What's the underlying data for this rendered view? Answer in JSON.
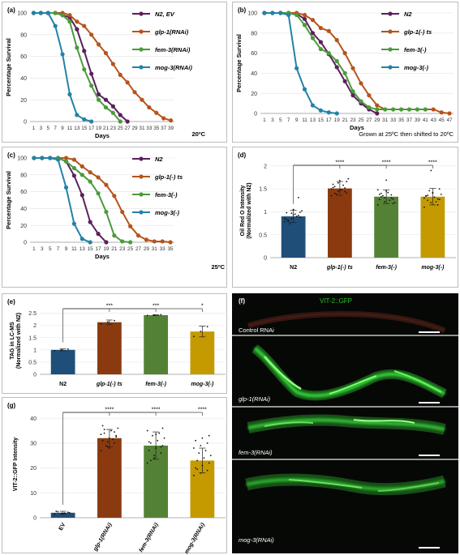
{
  "colors": {
    "N2": "#5c1f5c",
    "glp1": "#b5541c",
    "fem3": "#4c9a3c",
    "mog3": "#2382a7",
    "bar_N2": "#1f4e79",
    "bar_glp1": "#8b3a10",
    "bar_fem3": "#548235",
    "bar_mog3": "#c49a00"
  },
  "icons": [
    "legend-line-marker",
    "scale-bar"
  ],
  "chart_data": [
    {
      "id": "a",
      "type": "line",
      "panel_label": "(a)",
      "xlabel": "Days",
      "ylabel": "Percentage Survival",
      "note": "20ºC",
      "x_ticks": [
        1,
        3,
        5,
        7,
        9,
        11,
        13,
        15,
        17,
        19,
        21,
        23,
        25,
        27,
        29,
        31,
        33,
        35,
        37,
        39
      ],
      "y_ticks": [
        0,
        20,
        40,
        60,
        80,
        100
      ],
      "xlim": [
        0,
        40
      ],
      "ylim": [
        0,
        100
      ],
      "series": [
        {
          "name": "N2, EV",
          "key": "N2",
          "x": [
            1,
            3,
            5,
            7,
            9,
            11,
            13,
            15,
            17,
            19,
            21,
            23,
            25,
            27
          ],
          "y": [
            100,
            100,
            100,
            100,
            98,
            96,
            85,
            65,
            44,
            25,
            20,
            14,
            6,
            0
          ]
        },
        {
          "name": "glp-1(RNAi)",
          "key": "glp1",
          "x": [
            1,
            3,
            5,
            7,
            9,
            11,
            13,
            15,
            17,
            19,
            21,
            23,
            25,
            27,
            29,
            31,
            33,
            35,
            37,
            39
          ],
          "y": [
            100,
            100,
            100,
            100,
            100,
            98,
            92,
            88,
            80,
            71,
            63,
            53,
            43,
            36,
            27,
            20,
            13,
            8,
            3,
            1
          ]
        },
        {
          "name": "fem-3(RNAi)",
          "key": "fem3",
          "x": [
            1,
            3,
            5,
            7,
            9,
            11,
            13,
            15,
            17,
            19,
            21,
            23,
            25
          ],
          "y": [
            100,
            100,
            100,
            100,
            98,
            92,
            68,
            48,
            33,
            20,
            13,
            8,
            0
          ]
        },
        {
          "name": "mog-3(RNAi)",
          "key": "mog3",
          "x": [
            1,
            3,
            5,
            7,
            9,
            11,
            13,
            15,
            17
          ],
          "y": [
            100,
            100,
            100,
            88,
            62,
            25,
            6,
            2,
            0
          ]
        }
      ]
    },
    {
      "id": "b",
      "type": "line",
      "panel_label": "(b)",
      "xlabel": "Days",
      "ylabel": "Percentage Survival",
      "note": "Grown at 25ºC then shifted to 20ºC",
      "x_ticks": [
        1,
        3,
        5,
        7,
        9,
        11,
        13,
        15,
        17,
        19,
        21,
        23,
        25,
        27,
        29,
        31,
        33,
        35,
        37,
        39,
        41,
        43,
        45,
        47
      ],
      "y_ticks": [
        0,
        20,
        40,
        60,
        80,
        100
      ],
      "xlim": [
        0,
        48
      ],
      "ylim": [
        0,
        100
      ],
      "series": [
        {
          "name": "N2",
          "key": "N2",
          "x": [
            1,
            3,
            5,
            7,
            9,
            11,
            13,
            15,
            17,
            19,
            21,
            23,
            25,
            27,
            29
          ],
          "y": [
            100,
            100,
            100,
            100,
            99,
            94,
            80,
            71,
            59,
            46,
            32,
            18,
            10,
            4,
            0
          ]
        },
        {
          "name": "glp-1(-) ts",
          "key": "glp1",
          "x": [
            1,
            3,
            5,
            7,
            9,
            11,
            13,
            15,
            17,
            19,
            21,
            23,
            25,
            27,
            29,
            31,
            33,
            35,
            37,
            39,
            41,
            43,
            45,
            47
          ],
          "y": [
            100,
            100,
            100,
            100,
            100,
            98,
            93,
            85,
            82,
            73,
            60,
            45,
            30,
            18,
            8,
            4,
            4,
            4,
            4,
            4,
            4,
            4,
            1,
            0
          ]
        },
        {
          "name": "fem-3(-)",
          "key": "fem3",
          "x": [
            1,
            3,
            5,
            7,
            9,
            11,
            13,
            15,
            17,
            19,
            21,
            23,
            25,
            27,
            29,
            31,
            33,
            35,
            37,
            39,
            41
          ],
          "y": [
            100,
            100,
            100,
            100,
            98,
            88,
            75,
            64,
            60,
            52,
            40,
            22,
            12,
            6,
            4,
            4,
            4,
            4,
            4,
            4,
            4
          ]
        },
        {
          "name": "mog-3(-)",
          "key": "mog3",
          "x": [
            1,
            3,
            5,
            7,
            9,
            11,
            13,
            15,
            17,
            19
          ],
          "y": [
            100,
            100,
            100,
            98,
            45,
            24,
            8,
            3,
            1,
            0
          ]
        }
      ]
    },
    {
      "id": "c",
      "type": "line",
      "panel_label": "(c)",
      "xlabel": "Days",
      "ylabel": "Percentage Survival",
      "note": "25ºC",
      "x_ticks": [
        1,
        3,
        5,
        7,
        9,
        11,
        13,
        15,
        17,
        19,
        21,
        23,
        25,
        27,
        29,
        31,
        33,
        35
      ],
      "y_ticks": [
        0,
        20,
        40,
        60,
        80,
        100
      ],
      "xlim": [
        0,
        36
      ],
      "ylim": [
        0,
        100
      ],
      "series": [
        {
          "name": "N2",
          "key": "N2",
          "x": [
            1,
            3,
            5,
            7,
            9,
            11,
            13,
            15,
            17,
            19
          ],
          "y": [
            100,
            100,
            100,
            100,
            96,
            79,
            56,
            24,
            10,
            0
          ]
        },
        {
          "name": "glp-1(-) ts",
          "key": "glp1",
          "x": [
            1,
            3,
            5,
            7,
            9,
            11,
            13,
            15,
            17,
            19,
            21,
            23,
            25,
            27,
            29,
            31,
            33,
            35
          ],
          "y": [
            100,
            100,
            100,
            100,
            100,
            98,
            90,
            83,
            77,
            68,
            55,
            36,
            19,
            8,
            3,
            1,
            1,
            0
          ]
        },
        {
          "name": "fem-3(-)",
          "key": "fem3",
          "x": [
            1,
            3,
            5,
            7,
            9,
            11,
            13,
            15,
            17,
            19,
            21,
            23,
            25
          ],
          "y": [
            100,
            100,
            100,
            100,
            96,
            88,
            80,
            72,
            58,
            36,
            8,
            1,
            0
          ]
        },
        {
          "name": "mog-3(-)",
          "key": "mog3",
          "x": [
            1,
            3,
            5,
            7,
            9,
            11,
            13,
            15
          ],
          "y": [
            100,
            100,
            100,
            98,
            65,
            22,
            4,
            0
          ]
        }
      ]
    },
    {
      "id": "d",
      "type": "bar",
      "panel_label": "(d)",
      "ylabel": "Oil Red O Intensity (Normalized with N2)",
      "categories": [
        "N2",
        "glp-1(-) ts",
        "fem-3(-)",
        "mog-3(-)"
      ],
      "category_keys": [
        "bar_N2",
        "bar_glp1",
        "bar_fem3",
        "bar_mog3"
      ],
      "values": [
        0.9,
        1.51,
        1.33,
        1.33
      ],
      "errors": [
        0.13,
        0.15,
        0.15,
        0.18
      ],
      "significance": [
        "",
        "****",
        "****",
        "****"
      ],
      "y_ticks": [
        0,
        0.5,
        1,
        1.5,
        2
      ],
      "ylim": [
        0,
        2.05
      ],
      "points": [
        [
          0.78,
          0.85,
          0.92,
          0.98,
          1.05,
          0.88,
          0.81,
          0.95,
          1.02,
          0.74,
          0.9,
          0.86,
          0.97,
          1.31,
          0.83,
          0.93,
          0.99,
          0.79
        ],
        [
          1.35,
          1.45,
          1.52,
          1.6,
          1.68,
          1.41,
          1.55,
          1.48,
          1.72,
          1.38,
          1.58,
          1.5,
          1.63,
          1.44,
          1.53,
          1.47,
          1.66,
          1.4
        ],
        [
          1.15,
          1.22,
          1.3,
          1.38,
          1.45,
          1.28,
          1.33,
          1.42,
          1.2,
          1.35,
          1.25,
          1.48,
          1.31,
          1.37,
          1.27,
          1.69,
          1.18,
          1.4
        ],
        [
          1.1,
          1.2,
          1.28,
          1.35,
          1.42,
          1.5,
          1.25,
          1.32,
          1.38,
          1.46,
          1.22,
          1.3,
          1.9,
          1.15,
          1.34,
          1.41,
          1.27,
          1.36
        ]
      ]
    },
    {
      "id": "e",
      "type": "bar",
      "panel_label": "(e)",
      "ylabel": "TAG in LC-MS (Normalized with N2)",
      "categories": [
        "N2",
        "glp-1(-) ts",
        "fem-3(-)",
        "mog-3(-)"
      ],
      "category_keys": [
        "bar_N2",
        "bar_glp1",
        "bar_fem3",
        "bar_mog3"
      ],
      "values": [
        1.0,
        2.13,
        2.42,
        1.75
      ],
      "errors": [
        0.04,
        0.09,
        0.02,
        0.22
      ],
      "significance": [
        "",
        "***",
        "***",
        "*"
      ],
      "y_ticks": [
        0,
        0.5,
        1,
        1.5,
        2,
        2.5
      ],
      "ylim": [
        0,
        2.75
      ],
      "points": [
        [
          0.97,
          1.0,
          1.03
        ],
        [
          2.06,
          2.14,
          2.2
        ],
        [
          2.41,
          2.42,
          2.44
        ],
        [
          1.55,
          1.75,
          1.95
        ]
      ]
    },
    {
      "id": "g",
      "type": "bar",
      "panel_label": "(g)",
      "ylabel": "VIT-2::GFP Intensity",
      "categories": [
        "EV",
        "glp-1(RNAi)",
        "fem-3(RNAi)",
        "mog-3(RNAi)"
      ],
      "category_keys": [
        "bar_N2",
        "bar_glp1",
        "bar_fem3",
        "bar_mog3"
      ],
      "values": [
        2,
        32,
        29,
        23
      ],
      "errors": [
        0.6,
        3.5,
        5.5,
        5.0
      ],
      "significance": [
        "",
        "****",
        "****",
        "****"
      ],
      "y_ticks": [
        0,
        10,
        20,
        30,
        40
      ],
      "ylim": [
        0,
        43
      ],
      "points": [
        [
          1.4,
          1.8,
          2.2,
          2.6,
          1.6,
          2.0,
          2.4,
          1.9
        ],
        [
          27,
          28.5,
          30,
          31,
          32,
          33,
          34,
          35,
          36,
          29,
          31.5,
          33.5,
          30.5,
          34.5,
          37,
          28,
          32.5,
          35.5
        ],
        [
          22,
          24,
          26,
          27,
          28,
          29,
          30,
          31,
          32,
          33,
          34,
          35,
          25,
          28.5,
          30.5,
          33.5,
          36,
          23
        ],
        [
          17,
          18,
          19,
          20,
          21,
          22,
          23,
          24,
          25,
          26,
          27,
          28,
          29,
          30,
          31,
          32,
          33,
          19.5
        ]
      ]
    }
  ],
  "panel_f": {
    "panel_label": "(f)",
    "title": "VIT-2::GFP",
    "images": [
      {
        "label": "Control RNAi"
      },
      {
        "label": "glp-1(RNAi)"
      },
      {
        "label": "fem-3(RNAi)"
      },
      {
        "label": "mog-3(RNAi)"
      }
    ]
  }
}
